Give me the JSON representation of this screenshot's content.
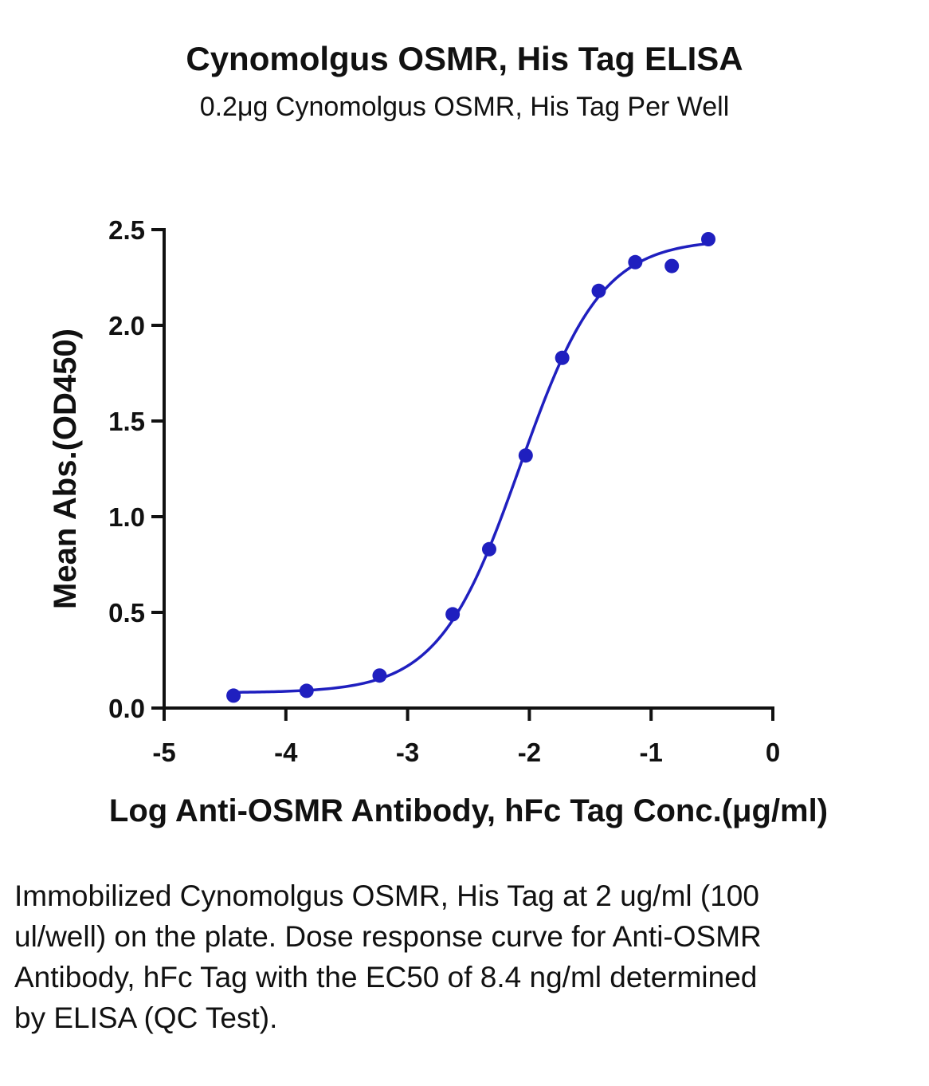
{
  "header": {
    "title": "Cynomolgus OSMR, His Tag ELISA",
    "subtitle": "0.2μg Cynomolgus OSMR, His Tag Per Well"
  },
  "caption": "Immobilized Cynomolgus OSMR, His Tag at 2 ug/ml (100 ul/well) on the plate. Dose response curve for Anti-OSMR Antibody, hFc Tag with the EC50 of 8.4 ng/ml determined by ELISA (QC Test).",
  "chart_data": {
    "type": "scatter",
    "title": "Cynomolgus OSMR, His Tag ELISA",
    "subtitle": "0.2μg Cynomolgus OSMR, His Tag Per Well",
    "xlabel": "Log Anti-OSMR Antibody, hFc Tag Conc.(μg/ml)",
    "ylabel": "Mean Abs.(OD450)",
    "xlim": [
      -5,
      0
    ],
    "ylim": [
      0,
      2.5
    ],
    "x_ticks": [
      "-5",
      "-4",
      "-3",
      "-2",
      "-1",
      "0"
    ],
    "y_ticks": [
      "0.0",
      "0.5",
      "1.0",
      "1.5",
      "2.0",
      "2.5"
    ],
    "grid": false,
    "color": "#1f1fbf",
    "series": [
      {
        "points": [
          {
            "x": -4.43,
            "y": 0.065
          },
          {
            "x": -3.83,
            "y": 0.09
          },
          {
            "x": -3.23,
            "y": 0.17
          },
          {
            "x": -2.63,
            "y": 0.49
          },
          {
            "x": -2.33,
            "y": 0.83
          },
          {
            "x": -2.03,
            "y": 1.32
          },
          {
            "x": -1.73,
            "y": 1.83
          },
          {
            "x": -1.43,
            "y": 2.18
          },
          {
            "x": -1.13,
            "y": 2.33
          },
          {
            "x": -0.83,
            "y": 2.31
          },
          {
            "x": -0.53,
            "y": 2.45
          }
        ],
        "fit": {
          "type": "4PL",
          "bottom": 0.08,
          "top": 2.45,
          "logEC50": -2.076,
          "hill": 1.3
        }
      }
    ]
  }
}
